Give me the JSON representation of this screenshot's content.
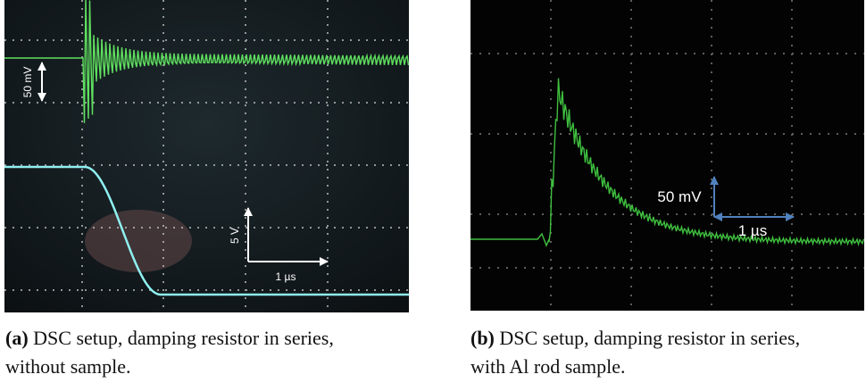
{
  "panels": [
    {
      "label": "(a)",
      "caption": "DSC setup, damping resistor in series, without sample.",
      "annotations": {
        "voltage_scale_ch1": "50 mV",
        "voltage_scale_ch2": "5 V",
        "time_scale": "1 µs"
      }
    },
    {
      "label": "(b)",
      "caption": "DSC setup, damping resistor in series, with Al rod sample.",
      "annotations": {
        "voltage_scale": "50 mV",
        "time_scale": "1 µs"
      }
    }
  ]
}
